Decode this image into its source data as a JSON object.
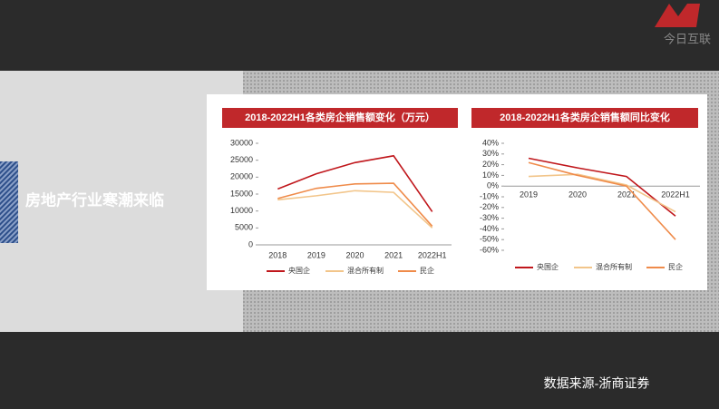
{
  "slide_title": "房地产行业寒潮来临",
  "source": "数据来源-浙商证券",
  "logo": "今日互联",
  "chart_data": [
    {
      "type": "line",
      "title": "2018-2022H1各类房企销售额变化（万元）",
      "categories": [
        "2018",
        "2019",
        "2020",
        "2021",
        "2022H1"
      ],
      "ylim": [
        0,
        30000
      ],
      "yticks": [
        0,
        5000,
        10000,
        15000,
        20000,
        25000,
        30000
      ],
      "series": [
        {
          "name": "央国企",
          "color": "#c0171c",
          "values": [
            16500,
            21000,
            24300,
            26300,
            9800
          ]
        },
        {
          "name": "混合所有制",
          "color": "#f2c58a",
          "values": [
            13300,
            14500,
            16000,
            15500,
            5000
          ]
        },
        {
          "name": "民企",
          "color": "#ef8b4a",
          "values": [
            13700,
            16700,
            18000,
            18200,
            5500
          ]
        }
      ]
    },
    {
      "type": "line",
      "title": "2018-2022H1各类房企销售额同比变化",
      "categories": [
        "2019",
        "2020",
        "2021",
        "2022H1"
      ],
      "ylim": [
        -60,
        40
      ],
      "yticks": [
        {
          "value": -60,
          "label": "-60%"
        },
        {
          "value": -50,
          "label": "-50%"
        },
        {
          "value": -40,
          "label": "-40%"
        },
        {
          "value": -30,
          "label": "-30%"
        },
        {
          "value": -20,
          "label": "-20%"
        },
        {
          "value": -10,
          "label": "-10%"
        },
        {
          "value": 0,
          "label": "0%"
        },
        {
          "value": 10,
          "label": "10%"
        },
        {
          "value": 20,
          "label": "20%"
        },
        {
          "value": 30,
          "label": "30%"
        },
        {
          "value": 40,
          "label": "40%"
        }
      ],
      "series": [
        {
          "name": "央国企",
          "color": "#c0171c",
          "values": [
            26,
            17,
            9,
            -28
          ]
        },
        {
          "name": "混合所有制",
          "color": "#f2c58a",
          "values": [
            9,
            11,
            1,
            -24
          ]
        },
        {
          "name": "民企",
          "color": "#ef8b4a",
          "values": [
            22,
            10,
            0,
            -50
          ]
        }
      ]
    }
  ]
}
